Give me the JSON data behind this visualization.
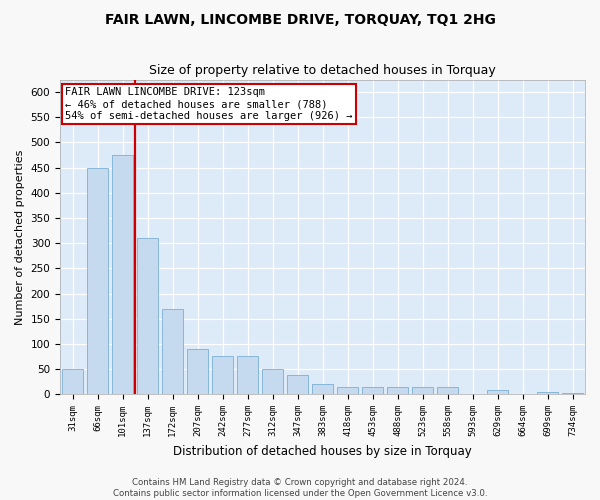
{
  "title": "FAIR LAWN, LINCOMBE DRIVE, TORQUAY, TQ1 2HG",
  "subtitle": "Size of property relative to detached houses in Torquay",
  "xlabel": "Distribution of detached houses by size in Torquay",
  "ylabel": "Number of detached properties",
  "bar_color": "#c5d9ef",
  "bar_edge_color": "#7bafd4",
  "background_color": "#ddeaf7",
  "grid_color": "#ffffff",
  "fig_facecolor": "#f8f8f8",
  "categories": [
    "31sqm",
    "66sqm",
    "101sqm",
    "137sqm",
    "172sqm",
    "207sqm",
    "242sqm",
    "277sqm",
    "312sqm",
    "347sqm",
    "383sqm",
    "418sqm",
    "453sqm",
    "488sqm",
    "523sqm",
    "558sqm",
    "593sqm",
    "629sqm",
    "664sqm",
    "699sqm",
    "734sqm"
  ],
  "values": [
    50,
    450,
    475,
    310,
    170,
    90,
    75,
    75,
    50,
    38,
    20,
    15,
    15,
    15,
    15,
    15,
    0,
    8,
    0,
    5,
    2
  ],
  "vline_x_index": 2.5,
  "vline_color": "#cc0000",
  "ann_line1": "FAIR LAWN LINCOMBE DRIVE: 123sqm",
  "ann_line2": "← 46% of detached houses are smaller (788)",
  "ann_line3": "54% of semi-detached houses are larger (926) →",
  "annotation_facecolor": "#ffffff",
  "annotation_edgecolor": "#cc0000",
  "ylim_max": 625,
  "yticks": [
    0,
    50,
    100,
    150,
    200,
    250,
    300,
    350,
    400,
    450,
    500,
    550,
    600
  ],
  "footer1": "Contains HM Land Registry data © Crown copyright and database right 2024.",
  "footer2": "Contains public sector information licensed under the Open Government Licence v3.0.",
  "title_fontsize": 10,
  "subtitle_fontsize": 9,
  "ylabel_fontsize": 8,
  "xlabel_fontsize": 8.5,
  "ytick_fontsize": 7.5,
  "xtick_fontsize": 6.5,
  "footer_fontsize": 6.2,
  "ann_fontsize": 7.5
}
